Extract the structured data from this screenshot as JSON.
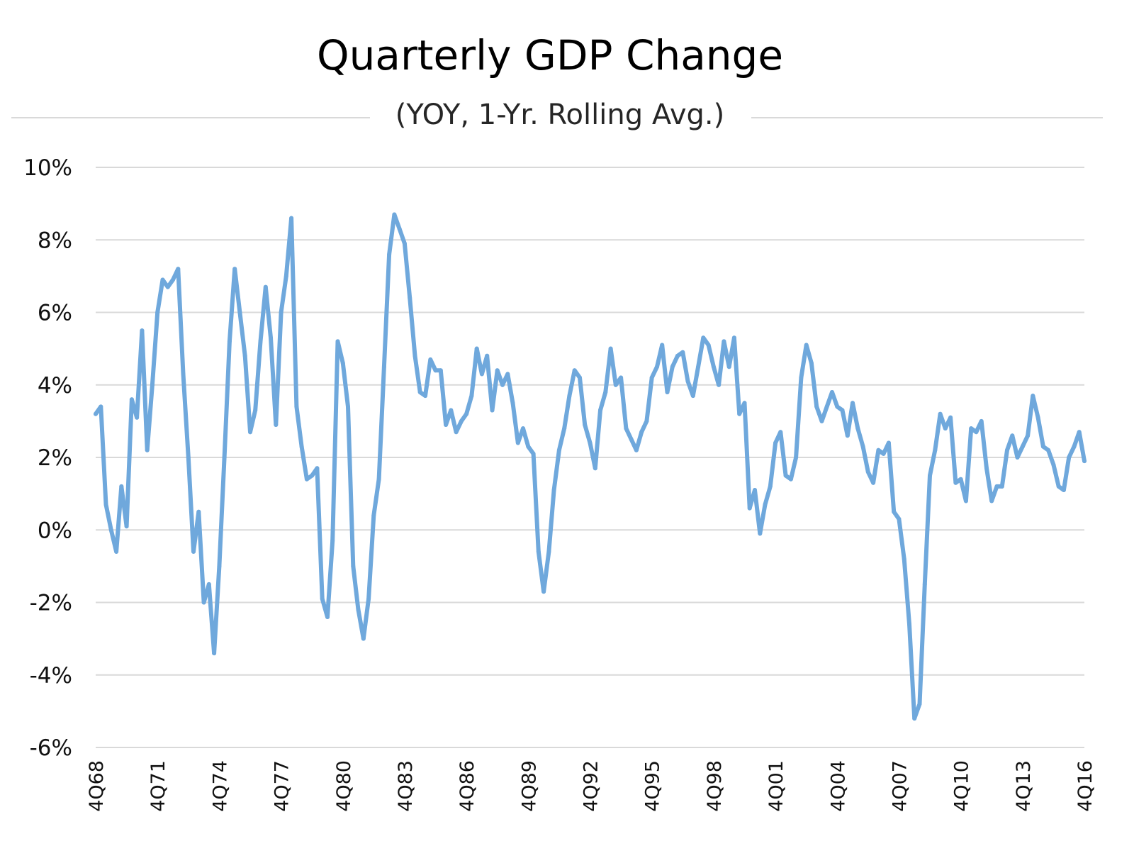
{
  "chart_data": {
    "type": "line",
    "title": "Quarterly GDP Change",
    "subtitle": "(YOY, 1-Yr. Rolling Avg.)",
    "xlabel": "",
    "ylabel": "",
    "ylim": [
      -6,
      10
    ],
    "y_ticks": [
      "10%",
      "8%",
      "6%",
      "4%",
      "2%",
      "0%",
      "-2%",
      "-4%",
      "-6%"
    ],
    "y_tick_values": [
      10,
      8,
      6,
      4,
      2,
      0,
      -2,
      -4,
      -6
    ],
    "x_ticks": [
      "4Q68",
      "4Q71",
      "4Q74",
      "4Q77",
      "4Q80",
      "4Q83",
      "4Q86",
      "4Q89",
      "4Q92",
      "4Q95",
      "4Q98",
      "4Q01",
      "4Q04",
      "4Q07",
      "4Q10",
      "4Q13",
      "4Q16"
    ],
    "grid": true,
    "legend": "none",
    "color": "#6fa8dc",
    "first_quarter": "4Q68",
    "last_quarter": "4Q16",
    "series": [
      {
        "values": [
          3.2,
          3.4,
          0.7,
          0.0,
          -0.6,
          1.2,
          0.1,
          3.6,
          3.1,
          5.5,
          2.2,
          4.0,
          6.0,
          6.9,
          6.7,
          6.9,
          7.2,
          4.3,
          2.0,
          -0.6,
          0.5,
          -2.0,
          -1.5,
          -3.4,
          -1.0,
          2.0,
          5.2,
          7.2,
          6.0,
          4.8,
          2.7,
          3.3,
          5.2,
          6.7,
          5.3,
          2.9,
          6.0,
          7.0,
          8.6,
          3.4,
          2.3,
          1.4,
          1.5,
          1.7,
          -1.9,
          -2.4,
          -0.3,
          5.2,
          4.6,
          3.4,
          -1.0,
          -2.2,
          -3.0,
          -1.9,
          0.4,
          1.4,
          4.5,
          7.6,
          8.7,
          8.3,
          7.9,
          6.4,
          4.8,
          3.8,
          3.7,
          4.7,
          4.4,
          4.4,
          2.9,
          3.3,
          2.7,
          3.0,
          3.2,
          3.7,
          5.0,
          4.3,
          4.8,
          3.3,
          4.4,
          4.0,
          4.3,
          3.5,
          2.4,
          2.8,
          2.3,
          2.1,
          -0.6,
          -1.7,
          -0.6,
          1.1,
          2.2,
          2.8,
          3.7,
          4.4,
          4.2,
          2.9,
          2.4,
          1.7,
          3.3,
          3.8,
          5.0,
          4.0,
          4.2,
          2.8,
          2.5,
          2.2,
          2.7,
          3.0,
          4.2,
          4.5,
          5.1,
          3.8,
          4.5,
          4.8,
          4.9,
          4.1,
          3.7,
          4.5,
          5.3,
          5.1,
          4.5,
          4.0,
          5.2,
          4.5,
          5.3,
          3.2,
          3.5,
          0.6,
          1.1,
          -0.1,
          0.7,
          1.2,
          2.4,
          2.7,
          1.5,
          1.4,
          2.0,
          4.2,
          5.1,
          4.6,
          3.4,
          3.0,
          3.4,
          3.8,
          3.4,
          3.3,
          2.6,
          3.5,
          2.8,
          2.3,
          1.6,
          1.3,
          2.2,
          2.1,
          2.4,
          0.5,
          0.3,
          -0.8,
          -2.6,
          -5.2,
          -4.8,
          -1.5,
          1.5,
          2.2,
          3.2,
          2.8,
          3.1,
          1.3,
          1.4,
          0.8,
          2.8,
          2.7,
          3.0,
          1.7,
          0.8,
          1.2,
          1.2,
          2.2,
          2.6,
          2.0,
          2.3,
          2.6,
          3.7,
          3.1,
          2.3,
          2.2,
          1.8,
          1.2,
          1.1,
          2.0,
          2.3,
          2.7,
          1.9
        ]
      }
    ]
  }
}
